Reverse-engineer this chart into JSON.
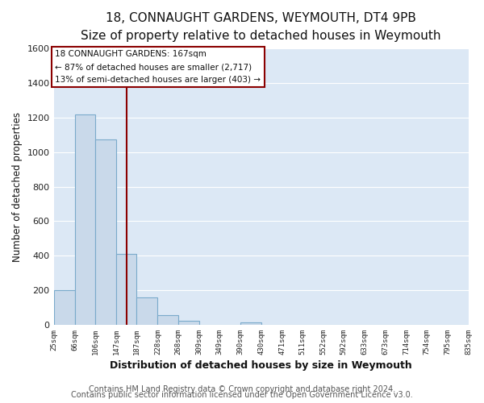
{
  "title": "18, CONNAUGHT GARDENS, WEYMOUTH, DT4 9PB",
  "subtitle": "Size of property relative to detached houses in Weymouth",
  "xlabel": "Distribution of detached houses by size in Weymouth",
  "ylabel": "Number of detached properties",
  "bin_edges": [
    25,
    66,
    106,
    147,
    187,
    228,
    268,
    309,
    349,
    390,
    430,
    471,
    511,
    552,
    592,
    633,
    673,
    714,
    754,
    795,
    835
  ],
  "bin_labels": [
    "25sqm",
    "66sqm",
    "106sqm",
    "147sqm",
    "187sqm",
    "228sqm",
    "268sqm",
    "309sqm",
    "349sqm",
    "390sqm",
    "430sqm",
    "471sqm",
    "511sqm",
    "552sqm",
    "592sqm",
    "633sqm",
    "673sqm",
    "714sqm",
    "754sqm",
    "795sqm",
    "835sqm"
  ],
  "bar_heights": [
    200,
    1220,
    1075,
    410,
    160,
    55,
    25,
    0,
    0,
    15,
    0,
    0,
    0,
    0,
    0,
    0,
    0,
    0,
    0,
    0
  ],
  "bar_color": "#c9d9ea",
  "bar_edgecolor": "#7aaacb",
  "property_line_x": 167,
  "property_line_color": "#8b0000",
  "ylim": [
    0,
    1600
  ],
  "yticks": [
    0,
    200,
    400,
    600,
    800,
    1000,
    1200,
    1400,
    1600
  ],
  "annotation_title": "18 CONNAUGHT GARDENS: 167sqm",
  "annotation_line1": "← 87% of detached houses are smaller (2,717)",
  "annotation_line2": "13% of semi-detached houses are larger (403) →",
  "annotation_box_color": "#8b0000",
  "footer_line1": "Contains HM Land Registry data © Crown copyright and database right 2024.",
  "footer_line2": "Contains public sector information licensed under the Open Government Licence v3.0.",
  "fig_background_color": "#ffffff",
  "axes_background_color": "#dce8f5",
  "grid_color": "#ffffff",
  "title_fontsize": 11,
  "subtitle_fontsize": 9.5,
  "xlabel_fontsize": 9,
  "ylabel_fontsize": 8.5,
  "footer_fontsize": 7
}
